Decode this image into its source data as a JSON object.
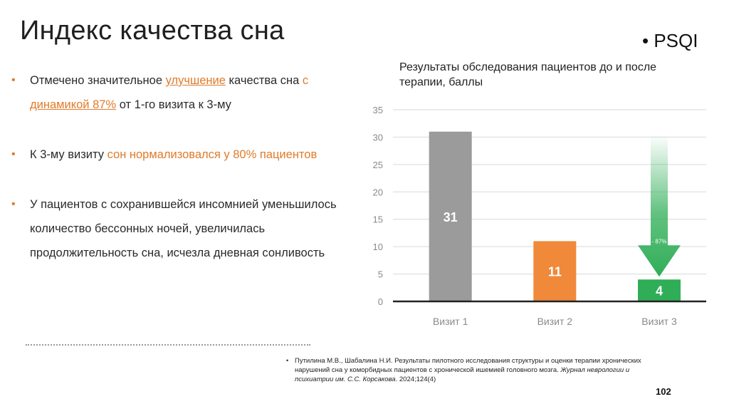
{
  "slide": {
    "title": "Индекс качества сна",
    "tag_bullet": "•",
    "tag": "PSQI",
    "page_number": "102"
  },
  "bullets": [
    {
      "bullet": "•",
      "parts": {
        "p1": "Отмечено значительное ",
        "p2": "улучшение",
        "p3": " качества сна ",
        "p4": "с",
        "p5": "динамикой 87%",
        "p6": " от 1-го визита к 3-му"
      }
    },
    {
      "bullet": "•",
      "parts": {
        "p1": "К 3-му визиту ",
        "p2": "сон нормализовался у 80% пациентов"
      }
    },
    {
      "bullet": "•",
      "text": "У пациентов с сохранившейся инсомнией уменьшилось количество бессонных ночей, увеличилась продолжительность сна, исчезла дневная сонливость"
    }
  ],
  "reference": {
    "bullet": "•",
    "authors_text": "Путилина М.В., Шабалина Н.И. Результаты пилотного исследования структуры и оценки терапии хронических нарушений сна у коморбидных пациентов с хронической ишемией головного мозга. ",
    "journal": "Журнал неврологии и психиатрии им. С.С. Корсакова",
    "details": ". 2024;124(4)"
  },
  "chart_data": {
    "type": "bar",
    "title": "Результаты обследования пациентов до и после терапии, баллы",
    "categories": [
      "Визит 1",
      "Визит 2",
      "Визит 3"
    ],
    "values": [
      31,
      11,
      4
    ],
    "data_labels": [
      "31",
      "11",
      "4"
    ],
    "colors": [
      "#9b9b9b",
      "#f0893a",
      "#2fae57"
    ],
    "ylim": [
      0,
      35
    ],
    "yticks": [
      0,
      5,
      10,
      15,
      20,
      25,
      30,
      35
    ],
    "grid": true,
    "xlabel": "",
    "ylabel": "",
    "annotation": {
      "text": "- 87%",
      "from_category": "Визит 1",
      "to_category": "Визит 3",
      "color": "#2fae57"
    }
  }
}
